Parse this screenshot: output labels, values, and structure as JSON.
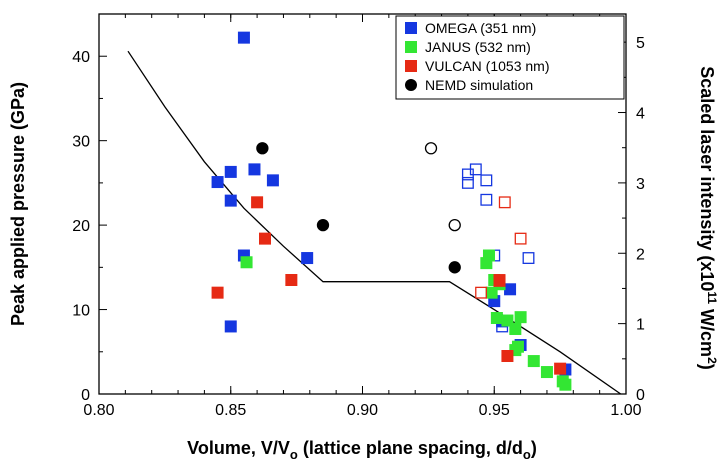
{
  "chart_data": {
    "type": "scatter",
    "xlabel_parts": [
      "Volume, V/V",
      "o",
      " (lattice plane spacing, d/d",
      "o",
      ")"
    ],
    "ylabel": "Peak applied pressure (GPa)",
    "y2label_parts": [
      "Scaled laser intensity (x10",
      "11",
      " W/cm",
      "2",
      ")"
    ],
    "xlim": [
      0.8,
      1.0
    ],
    "ylim": [
      0,
      45
    ],
    "y2lim": [
      0,
      5.4
    ],
    "xticks": [
      "0.80",
      "0.85",
      "0.90",
      "0.95",
      "1.00"
    ],
    "yticks": [
      "0",
      "10",
      "20",
      "30",
      "40"
    ],
    "y2ticks": [
      "0",
      "1",
      "2",
      "3",
      "4",
      "5"
    ],
    "colors": {
      "OMEGA": "#1537e0",
      "JANUS": "#33e633",
      "VULCAN": "#e62a14",
      "NEMD": "#000000"
    },
    "legend": [
      {
        "key": "OMEGA",
        "label": "OMEGA (351 nm)",
        "marker": "square"
      },
      {
        "key": "JANUS",
        "label": "JANUS (532 nm)",
        "marker": "square"
      },
      {
        "key": "VULCAN",
        "label": "VULCAN (1053 nm)",
        "marker": "square"
      },
      {
        "key": "NEMD",
        "label": "NEMD simulation",
        "marker": "circle"
      }
    ],
    "series": [
      {
        "name": "OMEGA (351 nm)",
        "key": "OMEGA",
        "marker": "square",
        "filled": true,
        "points": [
          [
            0.855,
            42.2
          ],
          [
            0.845,
            25.1
          ],
          [
            0.85,
            26.3
          ],
          [
            0.859,
            26.6
          ],
          [
            0.866,
            25.3
          ],
          [
            0.85,
            22.9
          ],
          [
            0.855,
            16.4
          ],
          [
            0.879,
            16.1
          ],
          [
            0.85,
            8.0
          ],
          [
            0.95,
            11.0
          ],
          [
            0.953,
            8.6
          ],
          [
            0.956,
            12.4
          ],
          [
            0.96,
            5.8
          ],
          [
            0.977,
            2.9
          ]
        ]
      },
      {
        "name": "OMEGA (351 nm)",
        "key": "OMEGA",
        "marker": "square",
        "filled": false,
        "points": [
          [
            0.94,
            26.0
          ],
          [
            0.943,
            26.6
          ],
          [
            0.947,
            25.3
          ],
          [
            0.94,
            25.0
          ],
          [
            0.947,
            23.0
          ],
          [
            0.95,
            16.4
          ],
          [
            0.963,
            16.1
          ],
          [
            0.953,
            8.0
          ]
        ]
      },
      {
        "name": "JANUS (532 nm)",
        "key": "JANUS",
        "marker": "square",
        "filled": true,
        "points": [
          [
            0.856,
            15.6
          ],
          [
            0.948,
            16.4
          ],
          [
            0.947,
            15.5
          ],
          [
            0.95,
            13.5
          ],
          [
            0.952,
            13.0
          ],
          [
            0.951,
            9.0
          ],
          [
            0.949,
            12.0
          ],
          [
            0.955,
            8.7
          ],
          [
            0.958,
            7.7
          ],
          [
            0.96,
            9.1
          ],
          [
            0.958,
            5.2
          ],
          [
            0.959,
            5.6
          ],
          [
            0.965,
            3.9
          ],
          [
            0.97,
            2.6
          ],
          [
            0.976,
            1.5
          ],
          [
            0.977,
            1.1
          ]
        ]
      },
      {
        "name": "VULCAN (1053 nm)",
        "key": "VULCAN",
        "marker": "square",
        "filled": true,
        "points": [
          [
            0.845,
            12.0
          ],
          [
            0.86,
            22.7
          ],
          [
            0.863,
            18.4
          ],
          [
            0.873,
            13.5
          ],
          [
            0.952,
            13.4
          ],
          [
            0.955,
            4.5
          ],
          [
            0.975,
            3.0
          ]
        ]
      },
      {
        "name": "VULCAN (1053 nm)",
        "key": "VULCAN",
        "marker": "square",
        "filled": false,
        "points": [
          [
            0.945,
            12.0
          ],
          [
            0.954,
            22.7
          ],
          [
            0.96,
            18.4
          ],
          [
            0.952,
            13.5
          ]
        ]
      },
      {
        "name": "NEMD simulation",
        "key": "NEMD",
        "marker": "circle",
        "filled": true,
        "points": [
          [
            0.862,
            29.1
          ],
          [
            0.885,
            20.0
          ],
          [
            0.935,
            15.0
          ]
        ]
      },
      {
        "name": "NEMD simulation",
        "key": "NEMD",
        "marker": "circle",
        "filled": false,
        "points": [
          [
            0.926,
            29.1
          ],
          [
            0.935,
            20.0
          ]
        ]
      }
    ],
    "line": {
      "points": [
        [
          0.811,
          40.6
        ],
        [
          0.825,
          34.0
        ],
        [
          0.84,
          27.5
        ],
        [
          0.855,
          22.0
        ],
        [
          0.87,
          17.5
        ],
        [
          0.885,
          13.3
        ],
        [
          0.933,
          13.3
        ],
        [
          0.95,
          10.0
        ],
        [
          0.975,
          5.0
        ],
        [
          0.998,
          0.0
        ]
      ]
    }
  }
}
